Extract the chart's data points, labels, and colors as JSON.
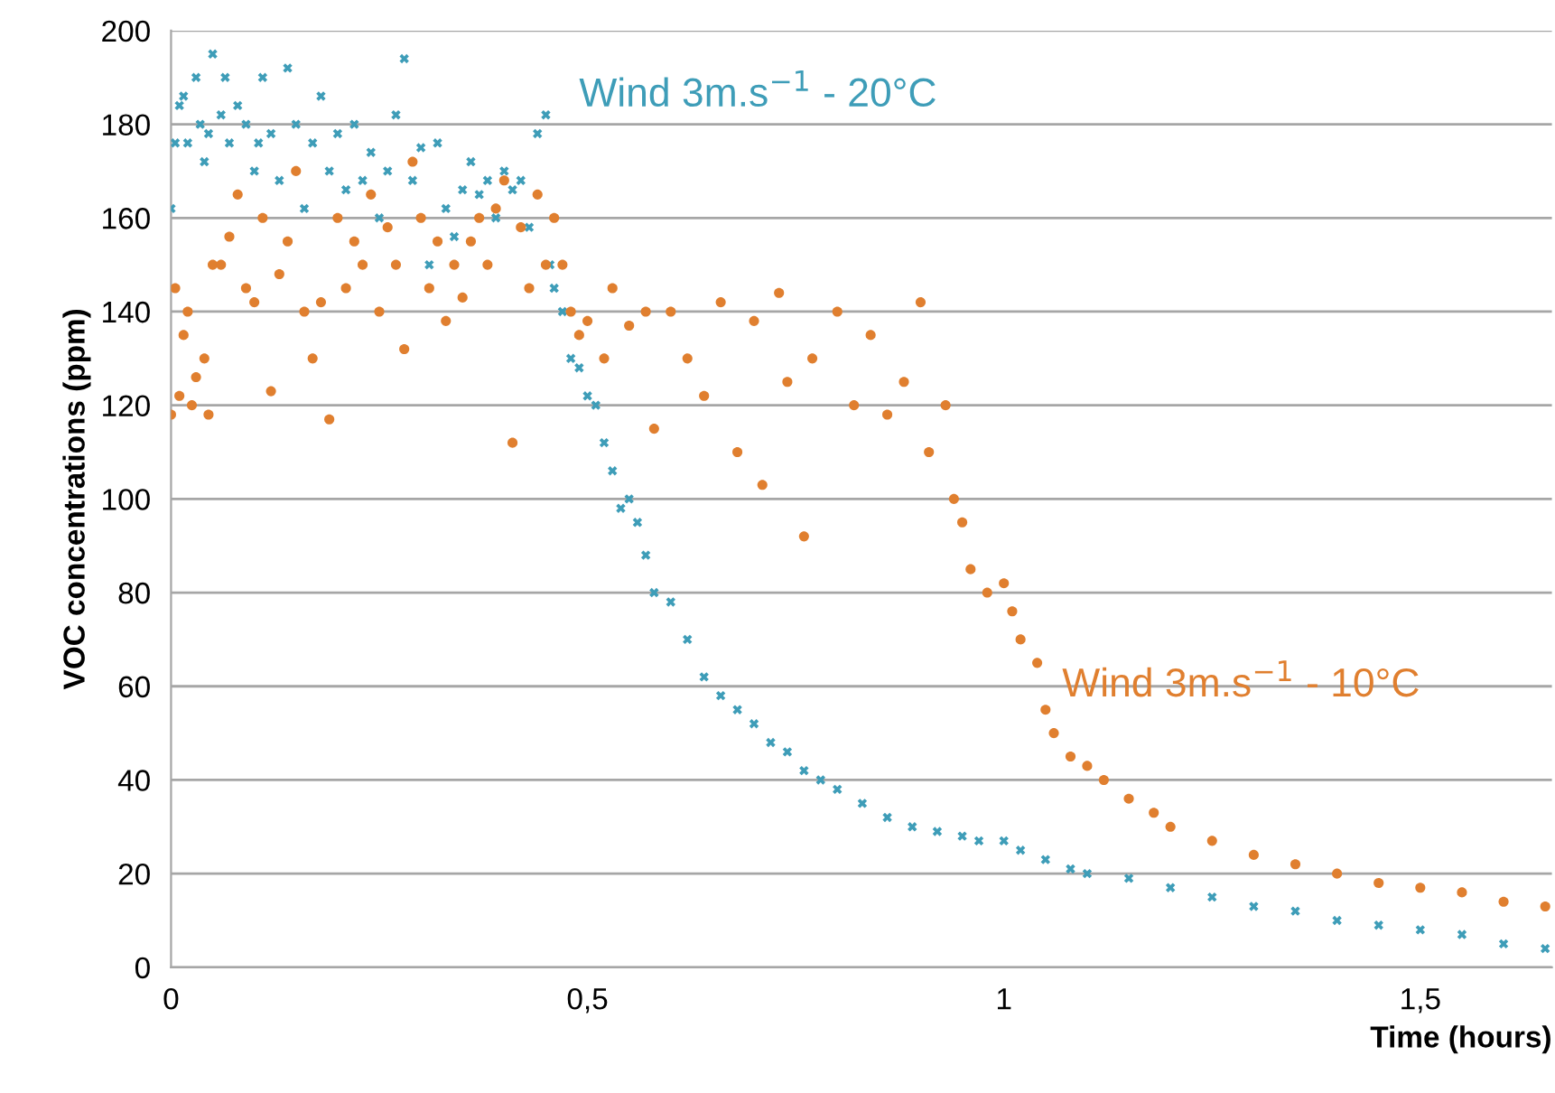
{
  "chart_data": {
    "type": "scatter",
    "xlabel": "Time (hours)",
    "ylabel": "VOC concentrations (ppm)",
    "xlim": [
      0,
      1.658
    ],
    "xticks": [
      0,
      {
        "value": 0.5,
        "label": "0,5"
      },
      1,
      {
        "value": 1.5,
        "label": "1,5"
      }
    ],
    "ylim": [
      0,
      200
    ],
    "yticks": [
      0,
      20,
      40,
      60,
      80,
      100,
      120,
      140,
      160,
      180,
      200
    ],
    "grid": "y",
    "series": [
      {
        "name": "Wind 3m.s$^{−1}$ - 20°C",
        "color": "#3e9db8",
        "marker": "cross",
        "x": [
          0,
          0.005,
          0.01,
          0.015,
          0.02,
          0.03,
          0.035,
          0.04,
          0.045,
          0.05,
          0.06,
          0.065,
          0.07,
          0.08,
          0.09,
          0.1,
          0.105,
          0.11,
          0.12,
          0.13,
          0.14,
          0.15,
          0.16,
          0.17,
          0.18,
          0.19,
          0.2,
          0.21,
          0.22,
          0.23,
          0.24,
          0.25,
          0.26,
          0.27,
          0.28,
          0.29,
          0.3,
          0.31,
          0.32,
          0.33,
          0.34,
          0.35,
          0.36,
          0.37,
          0.38,
          0.39,
          0.4,
          0.41,
          0.42,
          0.43,
          0.44,
          0.45,
          0.455,
          0.46,
          0.47,
          0.48,
          0.49,
          0.5,
          0.51,
          0.52,
          0.53,
          0.54,
          0.55,
          0.56,
          0.57,
          0.58,
          0.6,
          0.62,
          0.64,
          0.66,
          0.68,
          0.7,
          0.72,
          0.74,
          0.76,
          0.78,
          0.8,
          0.83,
          0.86,
          0.89,
          0.92,
          0.95,
          0.97,
          1.0,
          1.02,
          1.05,
          1.08,
          1.1,
          1.15,
          1.2,
          1.25,
          1.3,
          1.35,
          1.4,
          1.45,
          1.5,
          1.55,
          1.6,
          1.65
        ],
        "values": [
          162,
          176,
          184,
          186,
          176,
          190,
          180,
          172,
          178,
          195,
          182,
          190,
          176,
          184,
          180,
          170,
          176,
          190,
          178,
          168,
          192,
          180,
          162,
          176,
          186,
          170,
          178,
          166,
          180,
          168,
          174,
          160,
          170,
          182,
          194,
          168,
          175,
          150,
          176,
          162,
          156,
          166,
          172,
          165,
          168,
          160,
          170,
          166,
          168,
          158,
          178,
          182,
          150,
          145,
          140,
          130,
          128,
          122,
          120,
          112,
          106,
          98,
          100,
          95,
          88,
          80,
          78,
          70,
          62,
          58,
          55,
          52,
          48,
          46,
          42,
          40,
          38,
          35,
          32,
          30,
          29,
          28,
          27,
          27,
          25,
          23,
          21,
          20,
          19,
          17,
          15,
          13,
          12,
          10,
          9,
          8,
          7,
          5,
          4
        ]
      },
      {
        "name": "Wind 3m.s$^{−1}$ - 10°C",
        "color": "#e07f2f",
        "marker": "circle",
        "x": [
          0,
          0.005,
          0.01,
          0.015,
          0.02,
          0.025,
          0.03,
          0.04,
          0.045,
          0.05,
          0.06,
          0.07,
          0.08,
          0.09,
          0.1,
          0.11,
          0.12,
          0.13,
          0.14,
          0.15,
          0.16,
          0.17,
          0.18,
          0.19,
          0.2,
          0.21,
          0.22,
          0.23,
          0.24,
          0.25,
          0.26,
          0.27,
          0.28,
          0.29,
          0.3,
          0.31,
          0.32,
          0.33,
          0.34,
          0.35,
          0.36,
          0.37,
          0.38,
          0.39,
          0.4,
          0.41,
          0.42,
          0.43,
          0.44,
          0.45,
          0.46,
          0.47,
          0.48,
          0.49,
          0.5,
          0.52,
          0.53,
          0.55,
          0.57,
          0.58,
          0.6,
          0.62,
          0.64,
          0.66,
          0.68,
          0.7,
          0.71,
          0.73,
          0.74,
          0.76,
          0.77,
          0.8,
          0.82,
          0.84,
          0.86,
          0.88,
          0.9,
          0.91,
          0.93,
          0.94,
          0.95,
          0.96,
          0.98,
          1.0,
          1.01,
          1.02,
          1.04,
          1.05,
          1.06,
          1.08,
          1.1,
          1.12,
          1.15,
          1.18,
          1.2,
          1.25,
          1.3,
          1.35,
          1.4,
          1.45,
          1.5,
          1.55,
          1.6,
          1.65
        ],
        "values": [
          118,
          145,
          122,
          135,
          140,
          120,
          126,
          130,
          118,
          150,
          150,
          156,
          165,
          145,
          142,
          160,
          123,
          148,
          155,
          170,
          140,
          130,
          142,
          117,
          160,
          145,
          155,
          150,
          165,
          140,
          158,
          150,
          132,
          172,
          160,
          145,
          155,
          138,
          150,
          143,
          155,
          160,
          150,
          162,
          168,
          112,
          158,
          145,
          165,
          150,
          160,
          150,
          140,
          135,
          138,
          130,
          145,
          137,
          140,
          115,
          140,
          130,
          122,
          142,
          110,
          138,
          103,
          144,
          125,
          92,
          130,
          140,
          120,
          135,
          118,
          125,
          142,
          110,
          120,
          100,
          95,
          85,
          80,
          82,
          76,
          70,
          65,
          55,
          50,
          45,
          43,
          40,
          36,
          33,
          30,
          27,
          24,
          22,
          20,
          18,
          17,
          16,
          14,
          13
        ]
      }
    ]
  }
}
